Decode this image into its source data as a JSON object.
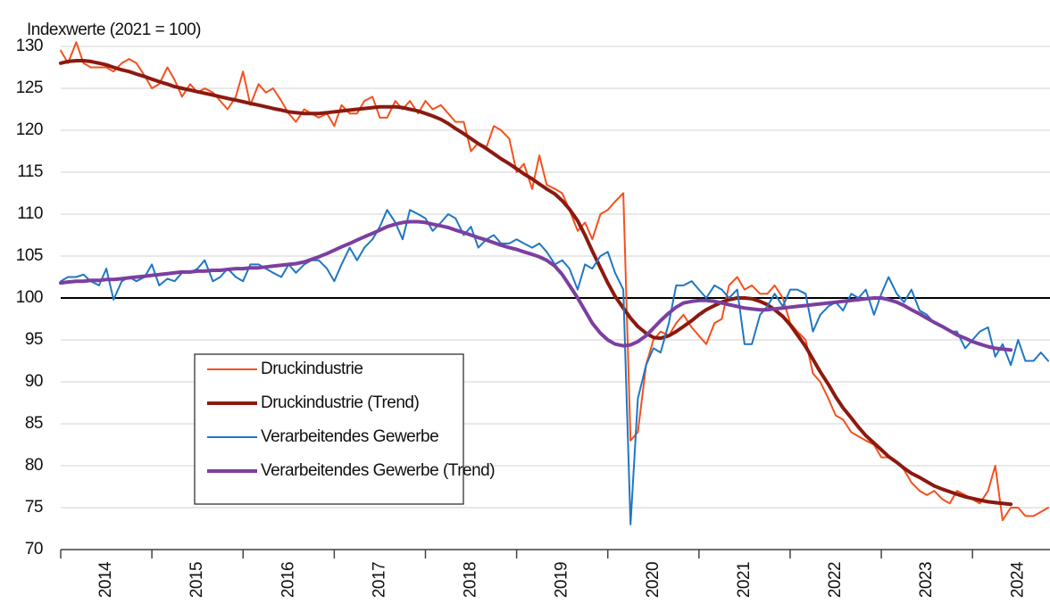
{
  "chart_data": {
    "type": "line",
    "ylabel": "Indexwerte (2021 = 100)",
    "reference_line": 100,
    "xlim": [
      2014,
      2024.85
    ],
    "xticks": [
      2014,
      2015,
      2016,
      2017,
      2018,
      2019,
      2020,
      2021,
      2022,
      2023,
      2024
    ],
    "ylim": [
      70,
      130
    ],
    "yticks": [
      70,
      75,
      80,
      85,
      90,
      95,
      100,
      105,
      110,
      115,
      120,
      125,
      130
    ],
    "grid": true,
    "x": [
      2014.0,
      2014.08,
      2014.17,
      2014.25,
      2014.33,
      2014.42,
      2014.5,
      2014.58,
      2014.67,
      2014.75,
      2014.83,
      2014.92,
      2015.0,
      2015.08,
      2015.17,
      2015.25,
      2015.33,
      2015.42,
      2015.5,
      2015.58,
      2015.67,
      2015.75,
      2015.83,
      2015.92,
      2016.0,
      2016.08,
      2016.17,
      2016.25,
      2016.33,
      2016.42,
      2016.5,
      2016.58,
      2016.67,
      2016.75,
      2016.83,
      2016.92,
      2017.0,
      2017.08,
      2017.17,
      2017.25,
      2017.33,
      2017.42,
      2017.5,
      2017.58,
      2017.67,
      2017.75,
      2017.83,
      2017.92,
      2018.0,
      2018.08,
      2018.17,
      2018.25,
      2018.33,
      2018.42,
      2018.5,
      2018.58,
      2018.67,
      2018.75,
      2018.83,
      2018.92,
      2019.0,
      2019.08,
      2019.17,
      2019.25,
      2019.33,
      2019.42,
      2019.5,
      2019.58,
      2019.67,
      2019.75,
      2019.83,
      2019.92,
      2020.0,
      2020.08,
      2020.17,
      2020.25,
      2020.33,
      2020.42,
      2020.5,
      2020.58,
      2020.67,
      2020.75,
      2020.83,
      2020.92,
      2021.0,
      2021.08,
      2021.17,
      2021.25,
      2021.33,
      2021.42,
      2021.5,
      2021.58,
      2021.67,
      2021.75,
      2021.83,
      2021.92,
      2022.0,
      2022.08,
      2022.17,
      2022.25,
      2022.33,
      2022.42,
      2022.5,
      2022.58,
      2022.67,
      2022.75,
      2022.83,
      2022.92,
      2023.0,
      2023.08,
      2023.17,
      2023.25,
      2023.33,
      2023.42,
      2023.5,
      2023.58,
      2023.67,
      2023.75,
      2023.83,
      2023.92,
      2024.0,
      2024.08,
      2024.17,
      2024.25,
      2024.33,
      2024.42,
      2024.5,
      2024.58,
      2024.67,
      2024.75,
      2024.83
    ],
    "series": [
      {
        "name": "Druckindustrie",
        "color": "#f4511e",
        "width": 2,
        "values": [
          129.5,
          128,
          130.5,
          128,
          127.5,
          127.5,
          127.5,
          127,
          128,
          128.5,
          128,
          126.5,
          125,
          125.5,
          127.5,
          126,
          124,
          125.5,
          124.5,
          125,
          124.5,
          123.5,
          122.5,
          124,
          127,
          123,
          125.5,
          124.5,
          125,
          123.5,
          122,
          121,
          122.5,
          122,
          121.5,
          122,
          120.5,
          123,
          122,
          122,
          123.5,
          124,
          121.5,
          121.5,
          123.5,
          122.5,
          123.5,
          122,
          123.5,
          122.5,
          123,
          122,
          121,
          121,
          117.5,
          118.5,
          118,
          120.5,
          120,
          119,
          115,
          116,
          113,
          117,
          113.5,
          113,
          112.5,
          110.5,
          108,
          109,
          107,
          110,
          110.5,
          111.5,
          112.5,
          83,
          84,
          92,
          95,
          96,
          95.5,
          97,
          98,
          96.5,
          95.5,
          94.5,
          97,
          97.5,
          101.5,
          102.5,
          101,
          101.5,
          100.5,
          100.5,
          101.5,
          100,
          97,
          96,
          95,
          91,
          90,
          88,
          86,
          85.5,
          84,
          83.5,
          83,
          82.5,
          81,
          81,
          80.5,
          79.5,
          78,
          77,
          76.5,
          77,
          76,
          75.5,
          77,
          76.5,
          76,
          75.5,
          77,
          80,
          73.5,
          75,
          75,
          74,
          74,
          74.5,
          75
        ]
      },
      {
        "name": "Druckindustrie (Trend)",
        "color": "#8b1a10",
        "width": 4,
        "values": [
          128,
          128.2,
          128.3,
          128.3,
          128.2,
          128,
          127.8,
          127.5,
          127.2,
          127,
          126.7,
          126.4,
          126.1,
          125.8,
          125.5,
          125.2,
          125,
          124.8,
          124.6,
          124.4,
          124.2,
          124,
          123.8,
          123.6,
          123.4,
          123.2,
          123,
          122.8,
          122.6,
          122.4,
          122.2,
          122.1,
          122,
          122,
          122,
          122.1,
          122.2,
          122.3,
          122.4,
          122.5,
          122.6,
          122.7,
          122.8,
          122.8,
          122.8,
          122.7,
          122.5,
          122.3,
          122,
          121.7,
          121.3,
          120.8,
          120.2,
          119.6,
          119,
          118.4,
          117.8,
          117.2,
          116.6,
          116,
          115.4,
          114.8,
          114.2,
          113.6,
          113,
          112.4,
          111.6,
          110.6,
          109.2,
          107.5,
          105.6,
          103.6,
          101.8,
          100.2,
          98.8,
          97.6,
          96.6,
          95.8,
          95.3,
          95.2,
          95.5,
          96,
          96.6,
          97.3,
          98,
          98.6,
          99.1,
          99.5,
          99.8,
          100,
          100,
          99.9,
          99.6,
          99.2,
          98.6,
          97.8,
          96.8,
          95.6,
          94.2,
          92.7,
          91.2,
          89.7,
          88.2,
          86.9,
          85.7,
          84.6,
          83.6,
          82.7,
          81.9,
          81.1,
          80.4,
          79.7,
          79.1,
          78.6,
          78.1,
          77.6,
          77.2,
          76.9,
          76.6,
          76.3,
          76.1,
          75.9,
          75.7,
          75.6,
          75.5,
          75.4,
          null,
          null,
          null,
          null,
          null
        ]
      },
      {
        "name": "Verarbeitendes Gewerbe",
        "color": "#1f77c4",
        "width": 2,
        "values": [
          102,
          102.5,
          102.5,
          102.8,
          102,
          101.5,
          103.5,
          99.8,
          102,
          102.5,
          102,
          102.5,
          104,
          101.5,
          102.3,
          102,
          103,
          103,
          103.5,
          104.5,
          102,
          102.5,
          103.5,
          102.5,
          102,
          104,
          104,
          103.5,
          103,
          102.5,
          104,
          103,
          104,
          104.5,
          104.5,
          103.5,
          102,
          104,
          106,
          104.5,
          106,
          107,
          108.5,
          110.5,
          109,
          107,
          110.5,
          110,
          109.5,
          108,
          109,
          110,
          109.5,
          107.5,
          108.5,
          106,
          107,
          107.5,
          106.5,
          106.5,
          107,
          106.5,
          106,
          106.5,
          105.5,
          104,
          104.5,
          103.5,
          101,
          104,
          103.5,
          105,
          105.5,
          103,
          101,
          73,
          88,
          92,
          94,
          93.5,
          97,
          101.5,
          101.5,
          102,
          101,
          100,
          101.5,
          101,
          100,
          101,
          94.5,
          94.5,
          98,
          99,
          100.5,
          99,
          101,
          101,
          100.5,
          96,
          98,
          99,
          99.5,
          98.5,
          100.5,
          100,
          101,
          98,
          100.5,
          102.5,
          100.5,
          99.5,
          101,
          98.5,
          98,
          97,
          96.5,
          96,
          96,
          94,
          95,
          96,
          96.5,
          93,
          94.5,
          92,
          95,
          92.5,
          92.5,
          93.5,
          92.5
        ]
      },
      {
        "name": "Verarbeitendes Gewerbe (Trend)",
        "color": "#7b3fa0",
        "width": 4,
        "values": [
          101.8,
          101.9,
          102,
          102,
          102.1,
          102.1,
          102.2,
          102.2,
          102.3,
          102.4,
          102.5,
          102.6,
          102.7,
          102.8,
          102.9,
          103,
          103.1,
          103.1,
          103.2,
          103.2,
          103.3,
          103.3,
          103.4,
          103.5,
          103.5,
          103.6,
          103.6,
          103.7,
          103.8,
          103.9,
          104,
          104.1,
          104.3,
          104.6,
          104.9,
          105.3,
          105.7,
          106.1,
          106.5,
          106.9,
          107.3,
          107.7,
          108.1,
          108.5,
          108.8,
          109,
          109.1,
          109.1,
          109,
          108.8,
          108.6,
          108.4,
          108.1,
          107.8,
          107.5,
          107.2,
          106.9,
          106.6,
          106.3,
          106,
          105.8,
          105.5,
          105.2,
          104.9,
          104.5,
          103.8,
          102.8,
          101.5,
          100,
          98.5,
          97,
          95.8,
          95,
          94.5,
          94.3,
          94.4,
          94.8,
          95.5,
          96.4,
          97.3,
          98.2,
          98.9,
          99.4,
          99.6,
          99.7,
          99.7,
          99.6,
          99.4,
          99.2,
          99,
          98.8,
          98.7,
          98.6,
          98.6,
          98.7,
          98.8,
          98.9,
          99,
          99.1,
          99.2,
          99.3,
          99.4,
          99.5,
          99.6,
          99.7,
          99.8,
          99.9,
          100,
          100,
          99.8,
          99.5,
          99.1,
          98.6,
          98.1,
          97.6,
          97.1,
          96.6,
          96.1,
          95.6,
          95.2,
          94.8,
          94.5,
          94.2,
          94,
          93.9,
          93.8,
          null,
          null,
          null,
          null,
          null
        ]
      }
    ]
  }
}
